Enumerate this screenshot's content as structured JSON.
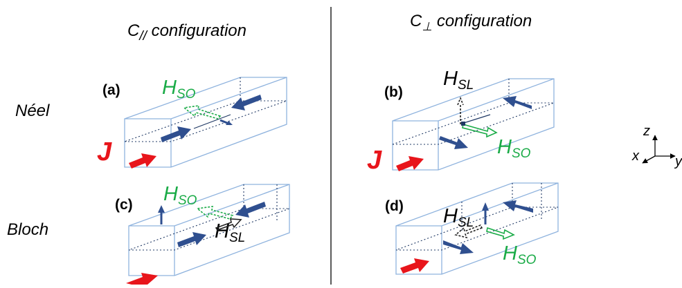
{
  "headers": {
    "left_main": "C",
    "left_sub": "//",
    "left_rest": " configuration",
    "right_main": "C",
    "right_sub": "⊥",
    "right_rest": " configuration"
  },
  "rows": {
    "top": "Néel",
    "bottom": "Bloch"
  },
  "panels": {
    "a": "(a)",
    "b": "(b)",
    "c": "(c)",
    "d": "(d)"
  },
  "fields": {
    "H": "H",
    "so_sub": "SO",
    "sl_sub": "SL",
    "current": "J"
  },
  "axes": {
    "z": "z",
    "x": "x",
    "y": "y"
  },
  "colors": {
    "magnetization": "#2f4f8f",
    "h_so": "#1aab47",
    "h_sl": "#222222",
    "current": "#e8151b",
    "box": "#8fb3de"
  }
}
